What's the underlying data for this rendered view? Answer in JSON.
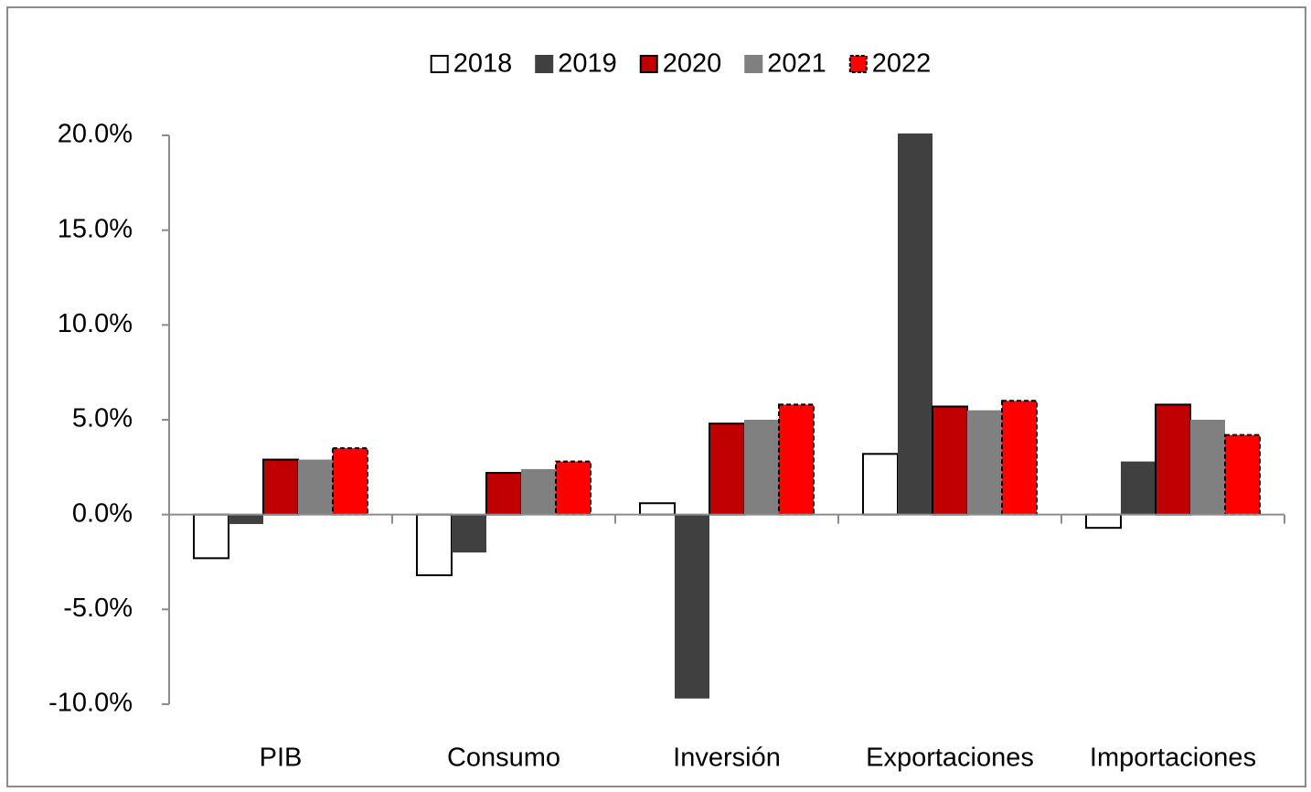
{
  "chart_data": {
    "type": "bar",
    "categories": [
      "PIB",
      "Consumo",
      "Inversión",
      "Exportaciones",
      "Importaciones"
    ],
    "series": [
      {
        "name": "2018",
        "color": "#ffffff",
        "border": "#000000",
        "values": [
          -2.3,
          -3.2,
          0.6,
          3.2,
          -0.7
        ]
      },
      {
        "name": "2019",
        "color": "#404040",
        "values": [
          -0.5,
          -2.0,
          -9.7,
          20.1,
          2.8
        ]
      },
      {
        "name": "2020",
        "color": "#c00000",
        "border": "#000000",
        "values": [
          2.9,
          2.2,
          4.8,
          5.7,
          5.8
        ]
      },
      {
        "name": "2021",
        "color": "#808080",
        "values": [
          2.9,
          2.4,
          5.0,
          5.5,
          5.0
        ]
      },
      {
        "name": "2022",
        "color": "#ff0000",
        "border": "#000000",
        "dashed": true,
        "values": [
          3.5,
          2.8,
          5.8,
          6.0,
          4.2
        ]
      }
    ],
    "ylim": [
      -10,
      20
    ],
    "yticks": [
      {
        "value": -10,
        "label": "-10.0%"
      },
      {
        "value": -5,
        "label": "-5.0%"
      },
      {
        "value": 0,
        "label": "0.0%"
      },
      {
        "value": 5,
        "label": "5.0%"
      },
      {
        "value": 10,
        "label": "10.0%"
      },
      {
        "value": 15,
        "label": "15.0%"
      },
      {
        "value": 20,
        "label": "20.0%"
      }
    ],
    "legend": "top"
  }
}
